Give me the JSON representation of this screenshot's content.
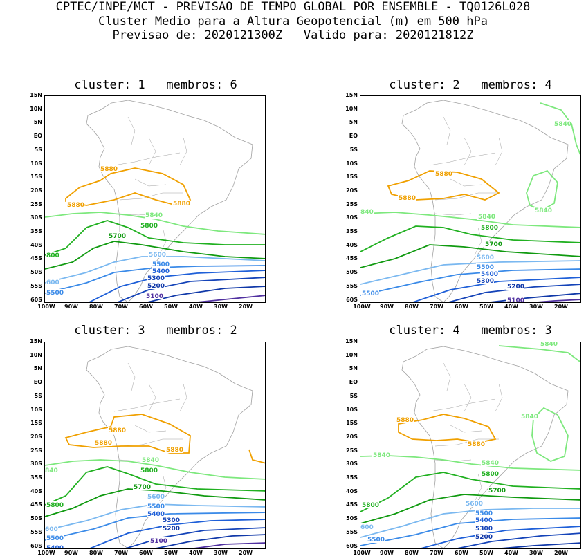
{
  "header": {
    "line1": "CPTEC/INPE/MCT - PREVISAO DE TEMPO GLOBAL POR ENSEMBLE - TQ0126L028",
    "line2": "Cluster Medio para a Altura Geopotencial (m) em 500 hPa",
    "line3": "Previsao de: 2020121300Z   Valido para: 2020121812Z"
  },
  "axes": {
    "lat_labels": [
      "15N",
      "10N",
      "5N",
      "EQ",
      "5S",
      "10S",
      "15S",
      "20S",
      "25S",
      "30S",
      "35S",
      "40S",
      "45S",
      "50S",
      "55S",
      "60S"
    ],
    "lon_labels": [
      "100W",
      "90W",
      "80W",
      "70W",
      "60W",
      "50W",
      "40W",
      "30W",
      "20W"
    ]
  },
  "colors": {
    "c5880": "#f0a000",
    "c5840": "#7de87d",
    "c5800": "#20b020",
    "c5700": "#109a10",
    "c5600": "#7ab8f0",
    "c5500": "#3a8ae8",
    "c5400": "#1e5fd8",
    "c5300": "#1443b8",
    "c5200": "#1038a8",
    "c5100": "#5030a0",
    "coast": "#a0a0a0"
  },
  "panels": [
    {
      "title": "cluster: 1   membros: 6",
      "labels": [
        {
          "text": "5880",
          "color": "c5880"
        },
        {
          "text": "5880",
          "color": "c5880"
        },
        {
          "text": "5880",
          "color": "c5880"
        },
        {
          "text": "5840",
          "color": "c5840"
        },
        {
          "text": "5800",
          "color": "c5800"
        },
        {
          "text": "5700",
          "color": "c5700"
        },
        {
          "text": "800",
          "color": "c5800"
        },
        {
          "text": "5600",
          "color": "c5600"
        },
        {
          "text": "600",
          "color": "c5600"
        },
        {
          "text": "5500",
          "color": "c5500"
        },
        {
          "text": "5500",
          "color": "c5500"
        },
        {
          "text": "5400",
          "color": "c5400"
        },
        {
          "text": "5300",
          "color": "c5300"
        },
        {
          "text": "5200",
          "color": "c5200"
        },
        {
          "text": "5100",
          "color": "c5100"
        }
      ]
    },
    {
      "title": "cluster: 2   membros: 4",
      "labels": [
        {
          "text": "5880",
          "color": "c5880"
        },
        {
          "text": "5880",
          "color": "c5880"
        },
        {
          "text": "5840",
          "color": "c5840"
        },
        {
          "text": "5840",
          "color": "c5840"
        },
        {
          "text": "840",
          "color": "c5840"
        },
        {
          "text": "5840",
          "color": "c5840"
        },
        {
          "text": "5800",
          "color": "c5800"
        },
        {
          "text": "5700",
          "color": "c5700"
        },
        {
          "text": "5600",
          "color": "c5600"
        },
        {
          "text": "5500",
          "color": "c5500"
        },
        {
          "text": "5400",
          "color": "c5400"
        },
        {
          "text": "5300",
          "color": "c5300"
        },
        {
          "text": "5500",
          "color": "c5500"
        },
        {
          "text": "5200",
          "color": "c5200"
        },
        {
          "text": "5100",
          "color": "c5100"
        }
      ]
    },
    {
      "title": "cluster: 3   membros: 2",
      "labels": [
        {
          "text": "5880",
          "color": "c5880"
        },
        {
          "text": "5880",
          "color": "c5880"
        },
        {
          "text": "5880",
          "color": "c5880"
        },
        {
          "text": "5840",
          "color": "c5840"
        },
        {
          "text": "840",
          "color": "c5840"
        },
        {
          "text": "5800",
          "color": "c5800"
        },
        {
          "text": "5700",
          "color": "c5700"
        },
        {
          "text": "5800",
          "color": "c5800"
        },
        {
          "text": "5600",
          "color": "c5600"
        },
        {
          "text": "5500",
          "color": "c5500"
        },
        {
          "text": "5400",
          "color": "c5400"
        },
        {
          "text": "5300",
          "color": "c5300"
        },
        {
          "text": "600",
          "color": "c5600"
        },
        {
          "text": "5500",
          "color": "c5500"
        },
        {
          "text": "5200",
          "color": "c5200"
        },
        {
          "text": "5100",
          "color": "c5100"
        },
        {
          "text": "5400",
          "color": "c5400"
        }
      ]
    },
    {
      "title": "cluster: 4   membros: 3",
      "labels": [
        {
          "text": "5840",
          "color": "c5840"
        },
        {
          "text": "5840",
          "color": "c5840"
        },
        {
          "text": "5880",
          "color": "c5880"
        },
        {
          "text": "5880",
          "color": "c5880"
        },
        {
          "text": "5840",
          "color": "c5840"
        },
        {
          "text": "5840",
          "color": "c5840"
        },
        {
          "text": "5800",
          "color": "c5800"
        },
        {
          "text": "5700",
          "color": "c5700"
        },
        {
          "text": "5800",
          "color": "c5800"
        },
        {
          "text": "5600",
          "color": "c5600"
        },
        {
          "text": "5500",
          "color": "c5500"
        },
        {
          "text": "5400",
          "color": "c5400"
        },
        {
          "text": "5300",
          "color": "c5300"
        },
        {
          "text": "600",
          "color": "c5600"
        },
        {
          "text": "5500",
          "color": "c5500"
        },
        {
          "text": "5200",
          "color": "c5200"
        }
      ]
    }
  ]
}
